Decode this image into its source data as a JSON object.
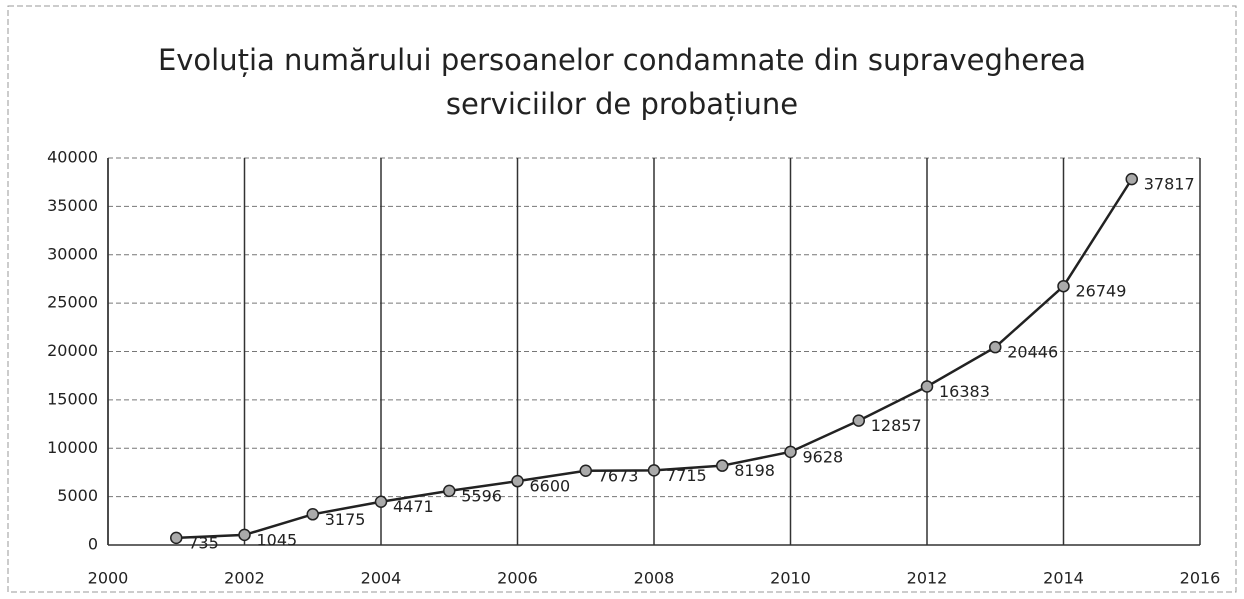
{
  "chart_data": {
    "type": "line",
    "title": "Evoluția numărului persoanelor condamnate din supravegherea serviciilor de probațiune",
    "x": [
      2001,
      2002,
      2003,
      2004,
      2005,
      2006,
      2007,
      2008,
      2009,
      2010,
      2011,
      2012,
      2013,
      2014,
      2015
    ],
    "series": [
      {
        "color": "#222222",
        "values": [
          735,
          1045,
          3175,
          4471,
          5596,
          6600,
          7673,
          7715,
          8198,
          9628,
          12857,
          16383,
          20446,
          26749,
          37817
        ]
      }
    ],
    "xlim": [
      2000,
      2016
    ],
    "xticks": [
      2000,
      2002,
      2004,
      2006,
      2008,
      2010,
      2012,
      2014,
      2016
    ],
    "ylim": [
      0,
      40000
    ],
    "yticks": [
      0,
      5000,
      10000,
      15000,
      20000,
      25000,
      30000,
      35000,
      40000
    ],
    "grid": true
  }
}
